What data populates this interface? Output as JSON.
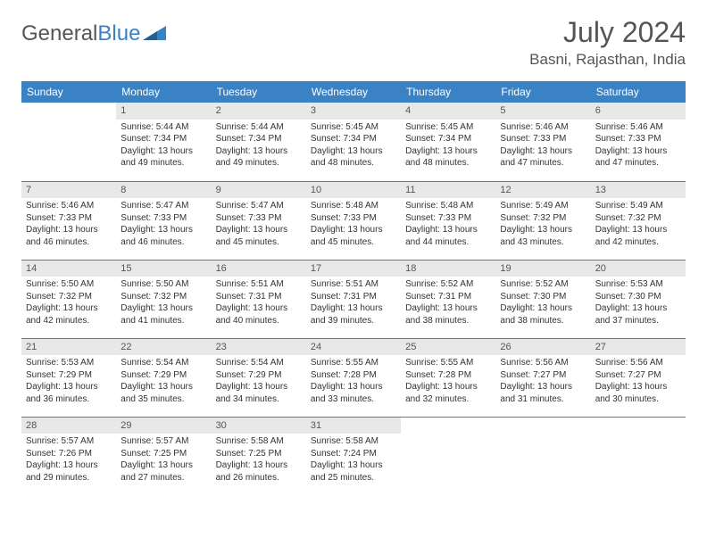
{
  "brand": {
    "part1": "General",
    "part2": "Blue"
  },
  "title": "July 2024",
  "location": "Basni, Rajasthan, India",
  "weekday_labels": [
    "Sunday",
    "Monday",
    "Tuesday",
    "Wednesday",
    "Thursday",
    "Friday",
    "Saturday"
  ],
  "colors": {
    "header_bg": "#3b82c4",
    "header_text": "#ffffff",
    "daynum_bg": "#e8e8e8",
    "border": "#3b82c4",
    "text": "#333333",
    "logo_gray": "#555555",
    "logo_blue": "#3b82c4"
  },
  "grid": [
    [
      {
        "day": "",
        "sunrise": "",
        "sunset": "",
        "daylight1": "",
        "daylight2": "",
        "empty": true
      },
      {
        "day": "1",
        "sunrise": "Sunrise: 5:44 AM",
        "sunset": "Sunset: 7:34 PM",
        "daylight1": "Daylight: 13 hours",
        "daylight2": "and 49 minutes."
      },
      {
        "day": "2",
        "sunrise": "Sunrise: 5:44 AM",
        "sunset": "Sunset: 7:34 PM",
        "daylight1": "Daylight: 13 hours",
        "daylight2": "and 49 minutes."
      },
      {
        "day": "3",
        "sunrise": "Sunrise: 5:45 AM",
        "sunset": "Sunset: 7:34 PM",
        "daylight1": "Daylight: 13 hours",
        "daylight2": "and 48 minutes."
      },
      {
        "day": "4",
        "sunrise": "Sunrise: 5:45 AM",
        "sunset": "Sunset: 7:34 PM",
        "daylight1": "Daylight: 13 hours",
        "daylight2": "and 48 minutes."
      },
      {
        "day": "5",
        "sunrise": "Sunrise: 5:46 AM",
        "sunset": "Sunset: 7:33 PM",
        "daylight1": "Daylight: 13 hours",
        "daylight2": "and 47 minutes."
      },
      {
        "day": "6",
        "sunrise": "Sunrise: 5:46 AM",
        "sunset": "Sunset: 7:33 PM",
        "daylight1": "Daylight: 13 hours",
        "daylight2": "and 47 minutes."
      }
    ],
    [
      {
        "day": "7",
        "sunrise": "Sunrise: 5:46 AM",
        "sunset": "Sunset: 7:33 PM",
        "daylight1": "Daylight: 13 hours",
        "daylight2": "and 46 minutes."
      },
      {
        "day": "8",
        "sunrise": "Sunrise: 5:47 AM",
        "sunset": "Sunset: 7:33 PM",
        "daylight1": "Daylight: 13 hours",
        "daylight2": "and 46 minutes."
      },
      {
        "day": "9",
        "sunrise": "Sunrise: 5:47 AM",
        "sunset": "Sunset: 7:33 PM",
        "daylight1": "Daylight: 13 hours",
        "daylight2": "and 45 minutes."
      },
      {
        "day": "10",
        "sunrise": "Sunrise: 5:48 AM",
        "sunset": "Sunset: 7:33 PM",
        "daylight1": "Daylight: 13 hours",
        "daylight2": "and 45 minutes."
      },
      {
        "day": "11",
        "sunrise": "Sunrise: 5:48 AM",
        "sunset": "Sunset: 7:33 PM",
        "daylight1": "Daylight: 13 hours",
        "daylight2": "and 44 minutes."
      },
      {
        "day": "12",
        "sunrise": "Sunrise: 5:49 AM",
        "sunset": "Sunset: 7:32 PM",
        "daylight1": "Daylight: 13 hours",
        "daylight2": "and 43 minutes."
      },
      {
        "day": "13",
        "sunrise": "Sunrise: 5:49 AM",
        "sunset": "Sunset: 7:32 PM",
        "daylight1": "Daylight: 13 hours",
        "daylight2": "and 42 minutes."
      }
    ],
    [
      {
        "day": "14",
        "sunrise": "Sunrise: 5:50 AM",
        "sunset": "Sunset: 7:32 PM",
        "daylight1": "Daylight: 13 hours",
        "daylight2": "and 42 minutes."
      },
      {
        "day": "15",
        "sunrise": "Sunrise: 5:50 AM",
        "sunset": "Sunset: 7:32 PM",
        "daylight1": "Daylight: 13 hours",
        "daylight2": "and 41 minutes."
      },
      {
        "day": "16",
        "sunrise": "Sunrise: 5:51 AM",
        "sunset": "Sunset: 7:31 PM",
        "daylight1": "Daylight: 13 hours",
        "daylight2": "and 40 minutes."
      },
      {
        "day": "17",
        "sunrise": "Sunrise: 5:51 AM",
        "sunset": "Sunset: 7:31 PM",
        "daylight1": "Daylight: 13 hours",
        "daylight2": "and 39 minutes."
      },
      {
        "day": "18",
        "sunrise": "Sunrise: 5:52 AM",
        "sunset": "Sunset: 7:31 PM",
        "daylight1": "Daylight: 13 hours",
        "daylight2": "and 38 minutes."
      },
      {
        "day": "19",
        "sunrise": "Sunrise: 5:52 AM",
        "sunset": "Sunset: 7:30 PM",
        "daylight1": "Daylight: 13 hours",
        "daylight2": "and 38 minutes."
      },
      {
        "day": "20",
        "sunrise": "Sunrise: 5:53 AM",
        "sunset": "Sunset: 7:30 PM",
        "daylight1": "Daylight: 13 hours",
        "daylight2": "and 37 minutes."
      }
    ],
    [
      {
        "day": "21",
        "sunrise": "Sunrise: 5:53 AM",
        "sunset": "Sunset: 7:29 PM",
        "daylight1": "Daylight: 13 hours",
        "daylight2": "and 36 minutes."
      },
      {
        "day": "22",
        "sunrise": "Sunrise: 5:54 AM",
        "sunset": "Sunset: 7:29 PM",
        "daylight1": "Daylight: 13 hours",
        "daylight2": "and 35 minutes."
      },
      {
        "day": "23",
        "sunrise": "Sunrise: 5:54 AM",
        "sunset": "Sunset: 7:29 PM",
        "daylight1": "Daylight: 13 hours",
        "daylight2": "and 34 minutes."
      },
      {
        "day": "24",
        "sunrise": "Sunrise: 5:55 AM",
        "sunset": "Sunset: 7:28 PM",
        "daylight1": "Daylight: 13 hours",
        "daylight2": "and 33 minutes."
      },
      {
        "day": "25",
        "sunrise": "Sunrise: 5:55 AM",
        "sunset": "Sunset: 7:28 PM",
        "daylight1": "Daylight: 13 hours",
        "daylight2": "and 32 minutes."
      },
      {
        "day": "26",
        "sunrise": "Sunrise: 5:56 AM",
        "sunset": "Sunset: 7:27 PM",
        "daylight1": "Daylight: 13 hours",
        "daylight2": "and 31 minutes."
      },
      {
        "day": "27",
        "sunrise": "Sunrise: 5:56 AM",
        "sunset": "Sunset: 7:27 PM",
        "daylight1": "Daylight: 13 hours",
        "daylight2": "and 30 minutes."
      }
    ],
    [
      {
        "day": "28",
        "sunrise": "Sunrise: 5:57 AM",
        "sunset": "Sunset: 7:26 PM",
        "daylight1": "Daylight: 13 hours",
        "daylight2": "and 29 minutes."
      },
      {
        "day": "29",
        "sunrise": "Sunrise: 5:57 AM",
        "sunset": "Sunset: 7:25 PM",
        "daylight1": "Daylight: 13 hours",
        "daylight2": "and 27 minutes."
      },
      {
        "day": "30",
        "sunrise": "Sunrise: 5:58 AM",
        "sunset": "Sunset: 7:25 PM",
        "daylight1": "Daylight: 13 hours",
        "daylight2": "and 26 minutes."
      },
      {
        "day": "31",
        "sunrise": "Sunrise: 5:58 AM",
        "sunset": "Sunset: 7:24 PM",
        "daylight1": "Daylight: 13 hours",
        "daylight2": "and 25 minutes."
      },
      {
        "day": "",
        "sunrise": "",
        "sunset": "",
        "daylight1": "",
        "daylight2": "",
        "empty": true
      },
      {
        "day": "",
        "sunrise": "",
        "sunset": "",
        "daylight1": "",
        "daylight2": "",
        "empty": true
      },
      {
        "day": "",
        "sunrise": "",
        "sunset": "",
        "daylight1": "",
        "daylight2": "",
        "empty": true
      }
    ]
  ]
}
